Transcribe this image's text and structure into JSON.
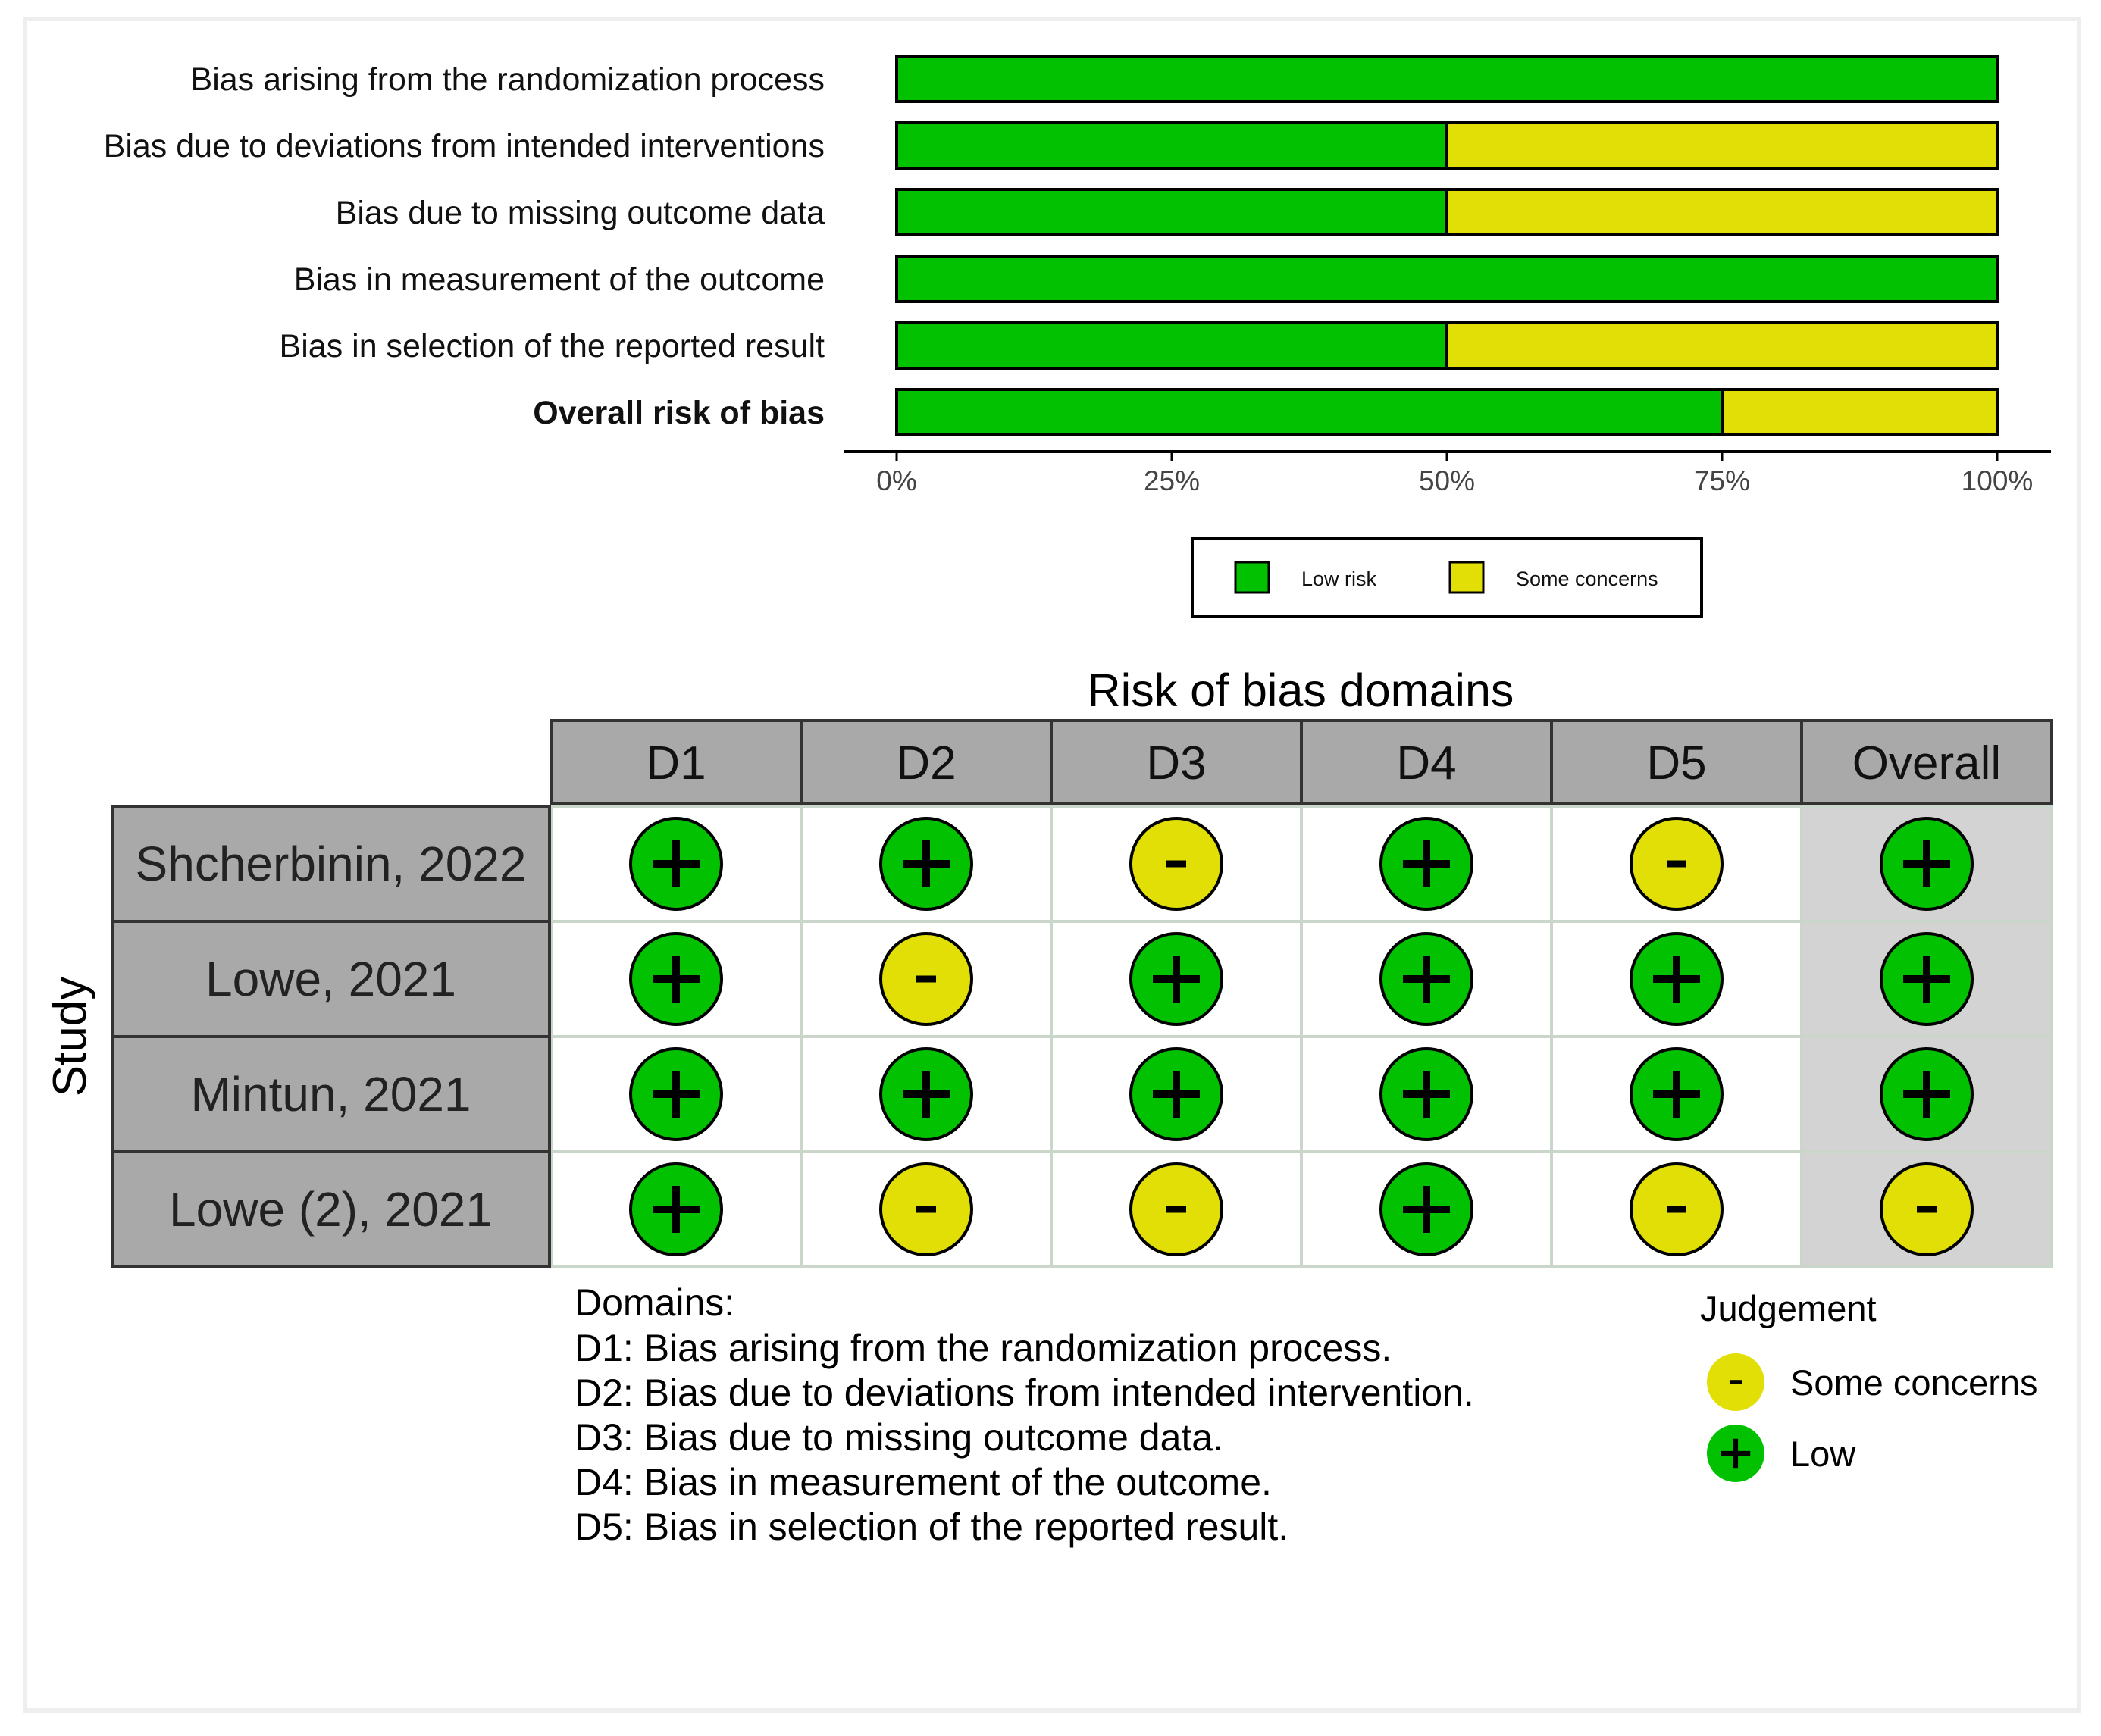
{
  "colors": {
    "low": "#02C100",
    "some_concerns": "#E2DF07",
    "header_fill": "#A9A9A9",
    "study_fill": "#A9A9A9",
    "overall_col_fill": "#D3D3D3",
    "grid_line": "#C9D6C9"
  },
  "chart_data": [
    {
      "type": "bar",
      "orientation": "horizontal",
      "stacked": true,
      "categories": [
        "Bias arising from the randomization process",
        "Bias due to deviations from intended interventions",
        "Bias due to missing outcome data",
        "Bias in measurement of the outcome",
        "Bias in selection of the reported result",
        "Overall risk of bias"
      ],
      "series": [
        {
          "name": "Low risk",
          "color": "#02C100",
          "values": [
            100,
            50,
            50,
            100,
            50,
            75
          ]
        },
        {
          "name": "Some concerns",
          "color": "#E2DF07",
          "values": [
            0,
            50,
            50,
            0,
            50,
            25
          ]
        }
      ],
      "xlim": [
        0,
        100
      ],
      "xticks": [
        "0%",
        "25%",
        "50%",
        "75%",
        "100%"
      ],
      "legend_position": "bottom",
      "grid": false
    },
    {
      "type": "table",
      "title": "Risk of bias domains",
      "ylabel": "Study",
      "columns": [
        "D1",
        "D2",
        "D3",
        "D4",
        "D5",
        "Overall"
      ],
      "rows": [
        {
          "study": "Shcherbinin, 2022",
          "judgements": [
            "+",
            "+",
            "-",
            "+",
            "-",
            "+"
          ]
        },
        {
          "study": "Lowe, 2021",
          "judgements": [
            "+",
            "-",
            "+",
            "+",
            "+",
            "+"
          ]
        },
        {
          "study": "Mintun, 2021",
          "judgements": [
            "+",
            "+",
            "+",
            "+",
            "+",
            "+"
          ]
        },
        {
          "study": "Lowe (2), 2021",
          "judgements": [
            "+",
            "-",
            "-",
            "+",
            "-",
            "-"
          ]
        }
      ],
      "domains_title": "Domains:",
      "domains": [
        "D1: Bias arising from the randomization process.",
        "D2: Bias due to deviations from intended intervention.",
        "D3: Bias due to missing outcome data.",
        "D4: Bias in measurement of the outcome.",
        "D5: Bias in selection of the reported result."
      ],
      "judgement_title": "Judgement",
      "judgement_legend": [
        {
          "symbol": "-",
          "label": "Some concerns",
          "color": "#E2DF07"
        },
        {
          "symbol": "+",
          "label": "Low",
          "color": "#02C100"
        }
      ]
    }
  ]
}
